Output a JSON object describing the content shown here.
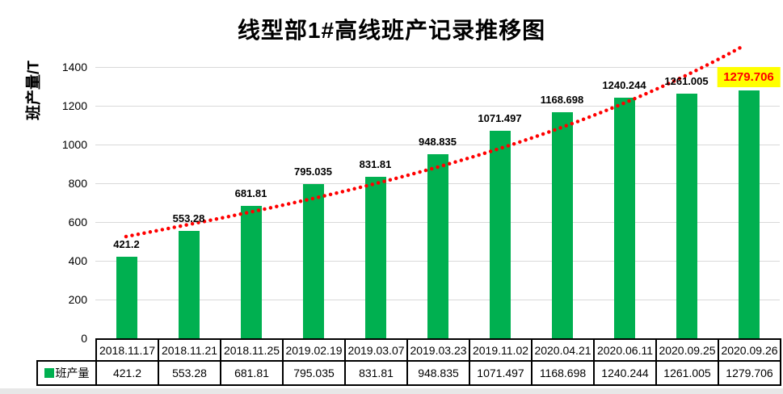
{
  "page": {
    "background": "#ffffff",
    "bottom_strip_color": "#e7e7e7"
  },
  "chart_data": {
    "type": "bar",
    "title": "线型部1#高线班产记录推移图",
    "ylabel": "班产量/T",
    "xlabel": "",
    "categories": [
      "2018.11.17",
      "2018.11.21",
      "2018.11.25",
      "2019.02.19",
      "2019.03.07",
      "2019.03.23",
      "2019.11.02",
      "2020.04.21",
      "2020.06.11",
      "2020.09.25",
      "2020.09.26"
    ],
    "series": [
      {
        "name": "班产量",
        "color": "#00B050",
        "values": [
          421.2,
          553.28,
          681.81,
          795.035,
          831.81,
          948.835,
          1071.497,
          1168.698,
          1240.244,
          1261.005,
          1279.706
        ]
      }
    ],
    "value_labels": [
      "421.2",
      "553.28",
      "681.81",
      "795.035",
      "831.81",
      "948.835",
      "1071.497",
      "1168.698",
      "1240.244",
      "1261.005",
      "1279.706"
    ],
    "ylim": [
      0,
      1400
    ],
    "yticks": [
      0,
      200,
      400,
      600,
      800,
      1000,
      1200,
      1400
    ],
    "grid": "horizontal",
    "gridline_color": "#d9d9d9",
    "legend_position": "data-table-left",
    "trendline": {
      "style": "dotted",
      "color": "#FF0000",
      "shape": "upward fit curve from ~520 at first category rising past 1400 near last category"
    },
    "last_label_highlight": {
      "background": "#FFFF00",
      "text_color": "#FF0000"
    },
    "data_table": {
      "shown": true,
      "legend_label": "班产量"
    }
  }
}
